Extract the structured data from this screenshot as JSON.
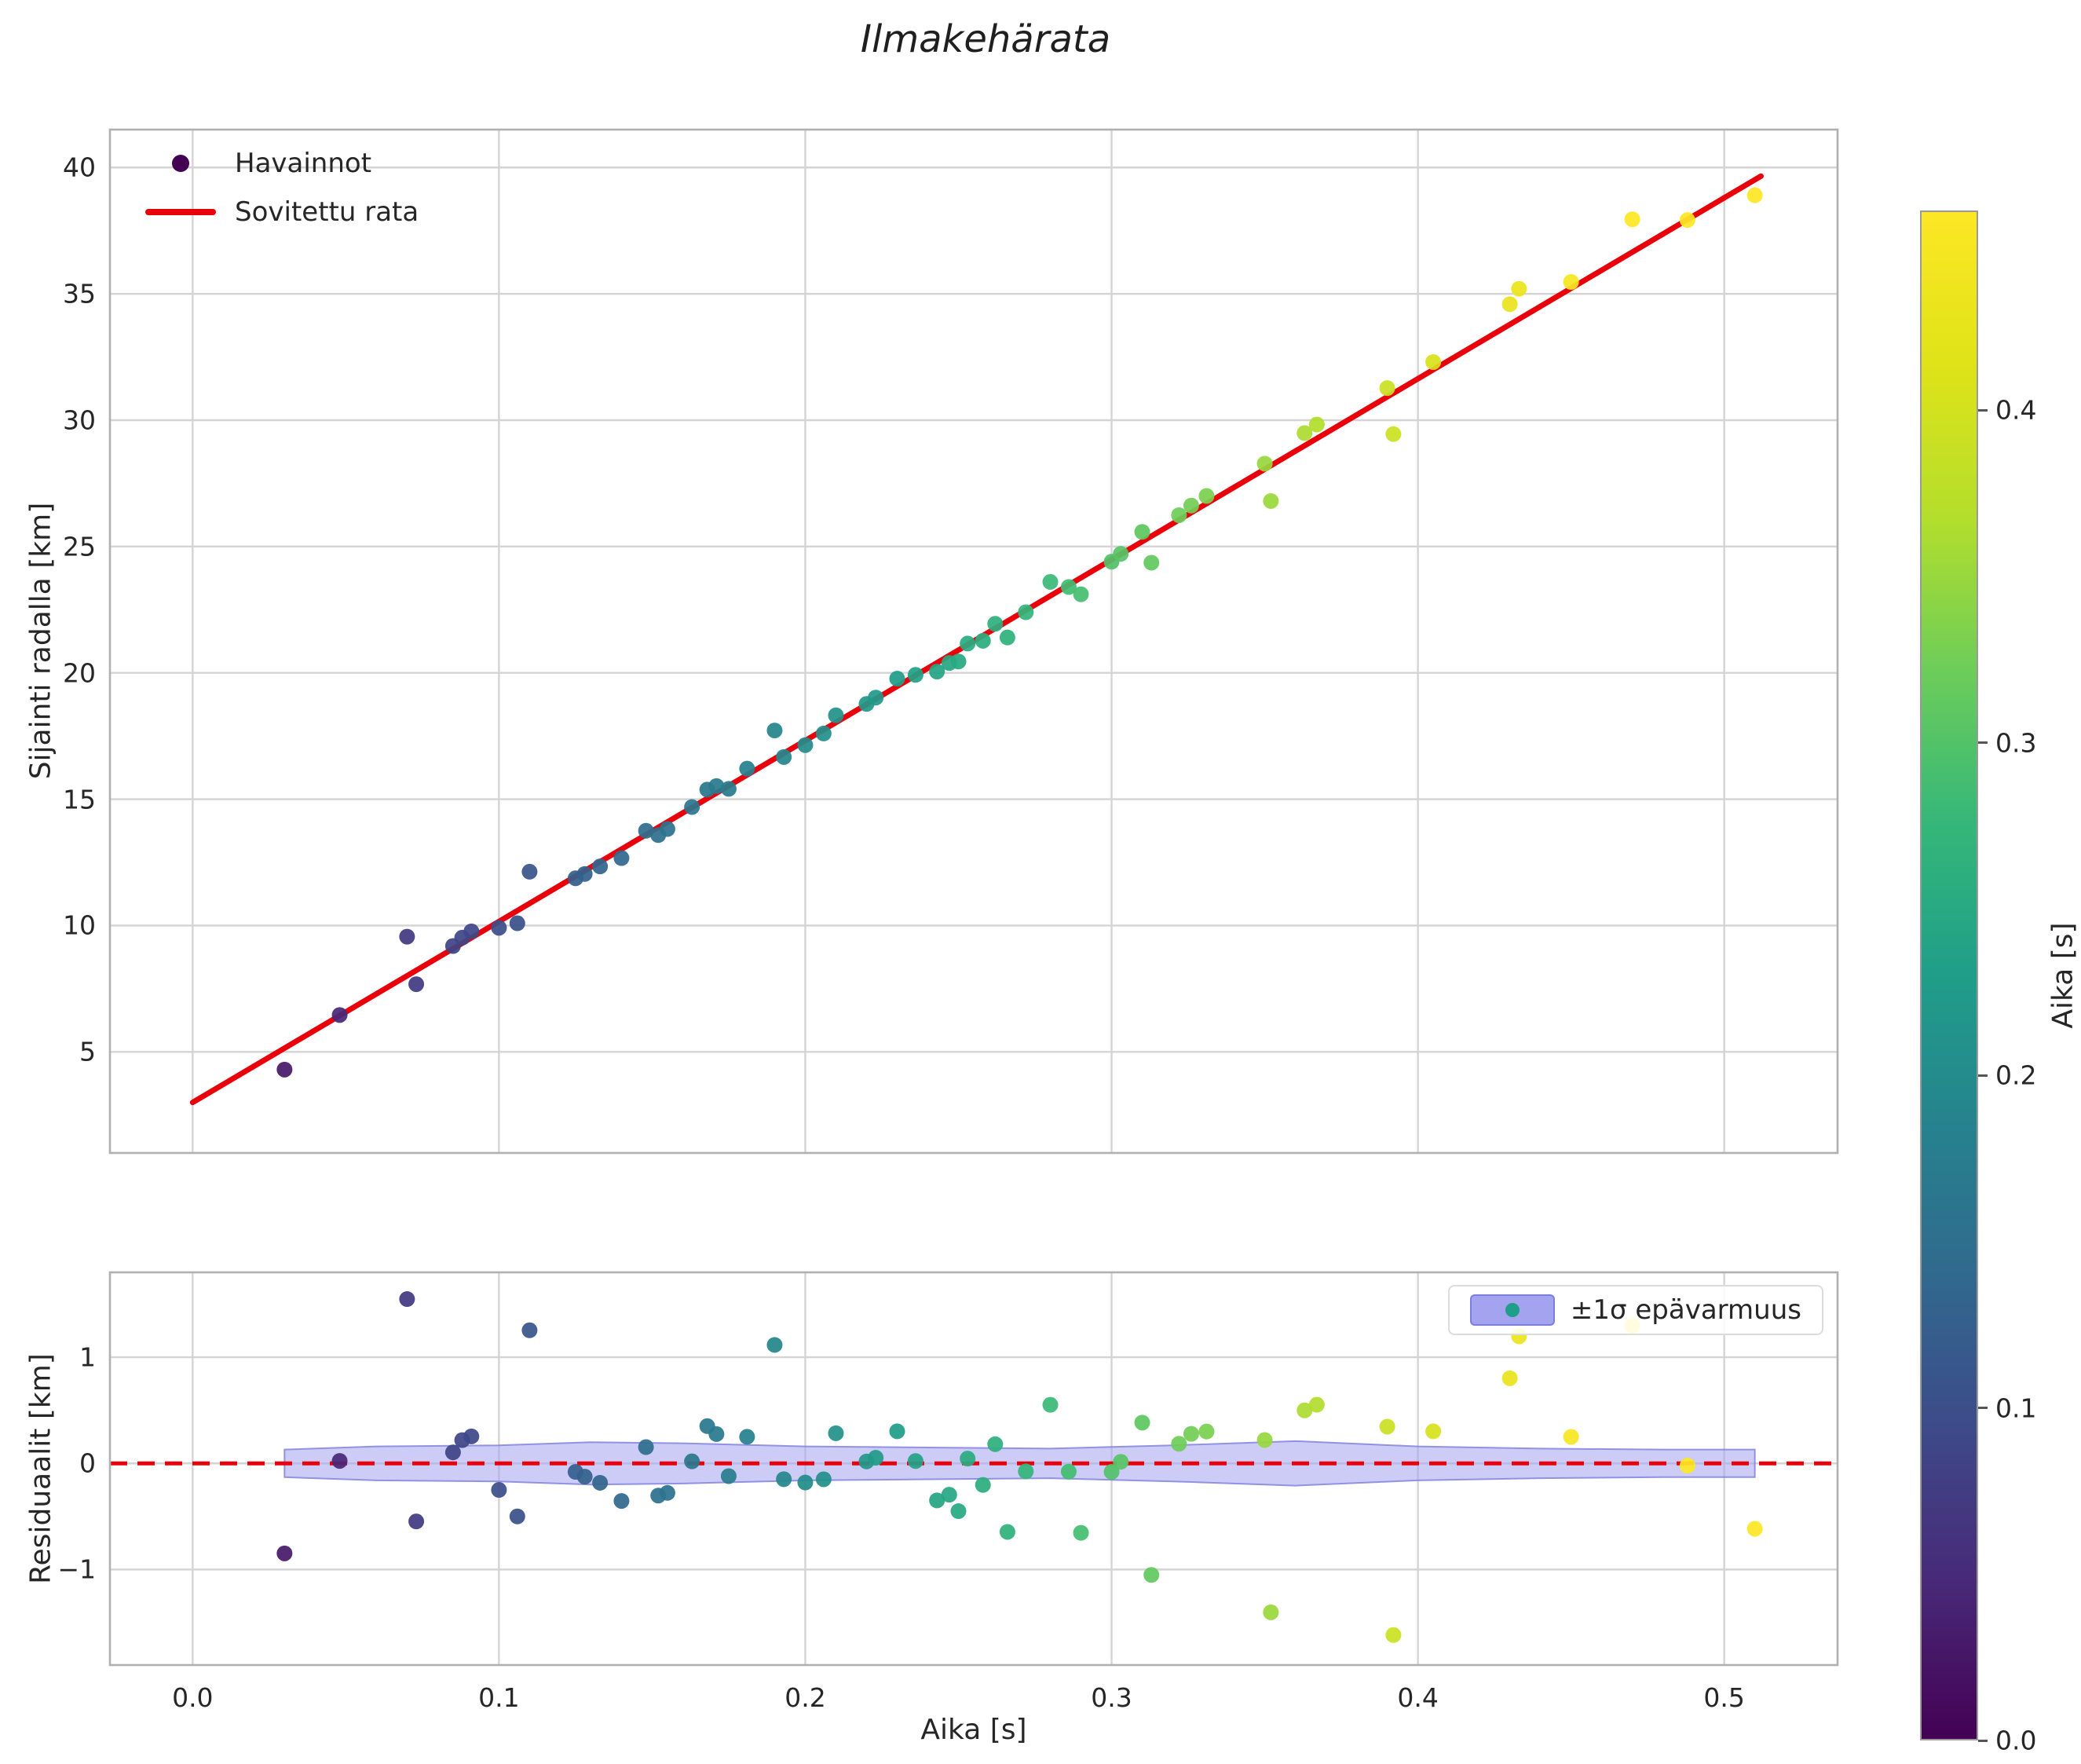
{
  "figure": {
    "title": "Ilmakehärata",
    "background": "#ffffff"
  },
  "styles": {
    "grid_color": "#d4d4d4",
    "spine_color": "#b0b0b0",
    "text_color": "#262626",
    "red": "#e8000b"
  },
  "chart_data": [
    {
      "type": "scatter",
      "title": "Ilmakehärata",
      "xlabel": "",
      "ylabel": "Sijainti radalla [km]",
      "xlim": [
        -0.027,
        0.537
      ],
      "ylim": [
        1.0,
        41.5
      ],
      "xticks": [
        0.0,
        0.1,
        0.2,
        0.3,
        0.4,
        0.5
      ],
      "xtick_labels": [
        "0.0",
        "0.1",
        "0.2",
        "0.3",
        "0.4",
        "0.5"
      ],
      "yticks": [
        5,
        10,
        15,
        20,
        25,
        30,
        35,
        40
      ],
      "ytick_labels": [
        "5",
        "10",
        "15",
        "20",
        "25",
        "30",
        "35",
        "40"
      ],
      "grid": true,
      "series_label": "Havainnot",
      "points": {
        "t": [
          0.03,
          0.048,
          0.07,
          0.073,
          0.085,
          0.088,
          0.091,
          0.1,
          0.106,
          0.11,
          0.125,
          0.128,
          0.133,
          0.14,
          0.148,
          0.152,
          0.155,
          0.163,
          0.168,
          0.171,
          0.175,
          0.181,
          0.19,
          0.193,
          0.2,
          0.206,
          0.21,
          0.22,
          0.223,
          0.23,
          0.236,
          0.243,
          0.247,
          0.25,
          0.253,
          0.258,
          0.262,
          0.266,
          0.272,
          0.28,
          0.286,
          0.29,
          0.3,
          0.303,
          0.31,
          0.313,
          0.322,
          0.326,
          0.331,
          0.35,
          0.352,
          0.363,
          0.367,
          0.39,
          0.392,
          0.405,
          0.43,
          0.433,
          0.45,
          0.47,
          0.488,
          0.51
        ],
        "y": [
          4.3,
          6.46,
          9.56,
          7.68,
          9.19,
          9.52,
          9.77,
          9.91,
          10.09,
          12.13,
          11.87,
          12.04,
          12.34,
          12.67,
          13.75,
          13.58,
          13.82,
          14.69,
          15.38,
          15.52,
          15.41,
          16.21,
          17.72,
          16.67,
          17.14,
          17.6,
          18.32,
          18.77,
          19.02,
          19.77,
          19.92,
          20.05,
          20.39,
          20.45,
          21.16,
          21.27,
          21.94,
          21.4,
          22.4,
          23.6,
          23.4,
          23.11,
          24.4,
          24.71,
          25.58,
          24.36,
          26.24,
          26.62,
          27.0,
          28.28,
          26.8,
          29.49,
          29.83,
          31.27,
          29.45,
          32.3,
          34.59,
          35.2,
          35.47,
          37.95,
          37.92,
          38.9
        ]
      },
      "fit_line": {
        "label": "Sovitettu rata",
        "slope_km_per_s": 71.6,
        "intercept_km": 3.0,
        "t_start": 0.0,
        "t_end": 0.512,
        "color": "#e8000b"
      },
      "legend": {
        "position": "upper left",
        "entries": [
          {
            "label": "Havainnot",
            "marker": "dot",
            "color": "#440154"
          },
          {
            "label": "Sovitettu rata",
            "marker": "line",
            "color": "#e8000b"
          }
        ]
      }
    },
    {
      "type": "scatter",
      "title": "",
      "xlabel": "Aika [s]",
      "ylabel": "Residuaalit [km]",
      "xlim": [
        -0.027,
        0.537
      ],
      "ylim": [
        -1.9,
        1.8
      ],
      "xticks": [
        0.0,
        0.1,
        0.2,
        0.3,
        0.4,
        0.5
      ],
      "xtick_labels": [
        "0.0",
        "0.1",
        "0.2",
        "0.3",
        "0.4",
        "0.5"
      ],
      "yticks": [
        -1,
        0,
        1
      ],
      "ytick_labels": [
        "−1",
        "0",
        "1"
      ],
      "grid": true,
      "zero_line": {
        "color": "#e8000b",
        "dashed": true,
        "y": 0
      },
      "band": {
        "label": "±1σ epävarmuus",
        "fill": "#a3a3ef",
        "edge": "#7d7de0",
        "t": [
          0.03,
          0.06,
          0.1,
          0.13,
          0.16,
          0.2,
          0.24,
          0.28,
          0.32,
          0.36,
          0.4,
          0.44,
          0.48,
          0.51
        ],
        "halfwidth": [
          0.13,
          0.16,
          0.17,
          0.2,
          0.19,
          0.16,
          0.15,
          0.14,
          0.17,
          0.21,
          0.16,
          0.14,
          0.13,
          0.13
        ]
      },
      "legend": {
        "position": "upper right",
        "entries": [
          {
            "label": "±1σ epävarmuus",
            "marker": "band-dot",
            "fill": "#a3a3ef",
            "edge": "#7d7de0",
            "dot_color": "#1f9e89"
          }
        ]
      }
    }
  ],
  "colorbar": {
    "label": "Aika [s]",
    "vmin": 0.0,
    "vmax": 0.46,
    "ticks": [
      0.0,
      0.1,
      0.2,
      0.3,
      0.4
    ],
    "tick_labels": [
      "0.0",
      "0.1",
      "0.2",
      "0.3",
      "0.4"
    ],
    "colormap": "viridis",
    "stops": [
      [
        0.0,
        "#440154"
      ],
      [
        0.1,
        "#482878"
      ],
      [
        0.2,
        "#3e4989"
      ],
      [
        0.3,
        "#31688e"
      ],
      [
        0.4,
        "#26828e"
      ],
      [
        0.5,
        "#1f9e89"
      ],
      [
        0.6,
        "#35b779"
      ],
      [
        0.7,
        "#6dcd59"
      ],
      [
        0.8,
        "#b4de2c"
      ],
      [
        0.9,
        "#dfe318"
      ],
      [
        1.0,
        "#fde725"
      ]
    ]
  }
}
